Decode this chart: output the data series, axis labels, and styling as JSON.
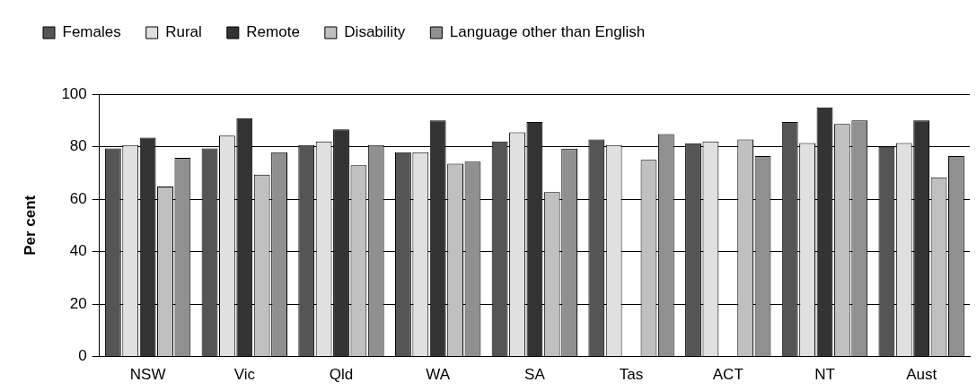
{
  "chart_data": {
    "type": "bar",
    "ylabel": "Per cent",
    "categories": [
      "NSW",
      "Vic",
      "Qld",
      "WA",
      "SA",
      "Tas",
      "ACT",
      "NT",
      "Aust"
    ],
    "series": [
      {
        "name": "Females",
        "color": "#555555",
        "values": [
          79.3,
          79.3,
          80.6,
          77.9,
          82.0,
          82.7,
          81.3,
          89.4,
          79.9
        ]
      },
      {
        "name": "Rural",
        "color": "#e0e0e0",
        "values": [
          80.6,
          84.2,
          82.0,
          77.9,
          85.5,
          80.6,
          82.0,
          81.4,
          81.4
        ]
      },
      {
        "name": "Remote",
        "color": "#333333",
        "values": [
          83.4,
          90.9,
          86.6,
          90.0,
          89.4,
          null,
          null,
          95.0,
          90.0
        ]
      },
      {
        "name": "Disability",
        "color": "#c0c0c0",
        "values": [
          64.8,
          69.3,
          72.9,
          73.5,
          62.7,
          75.0,
          82.7,
          88.6,
          68.3
        ]
      },
      {
        "name": "Language other than English",
        "color": "#909090",
        "values": [
          75.7,
          77.9,
          80.6,
          74.3,
          79.2,
          84.8,
          76.4,
          90.0,
          76.4
        ]
      }
    ],
    "ylim": [
      0,
      100
    ],
    "yticks": [
      0,
      20,
      40,
      60,
      80,
      100
    ],
    "grid": "y",
    "legend": "top"
  }
}
